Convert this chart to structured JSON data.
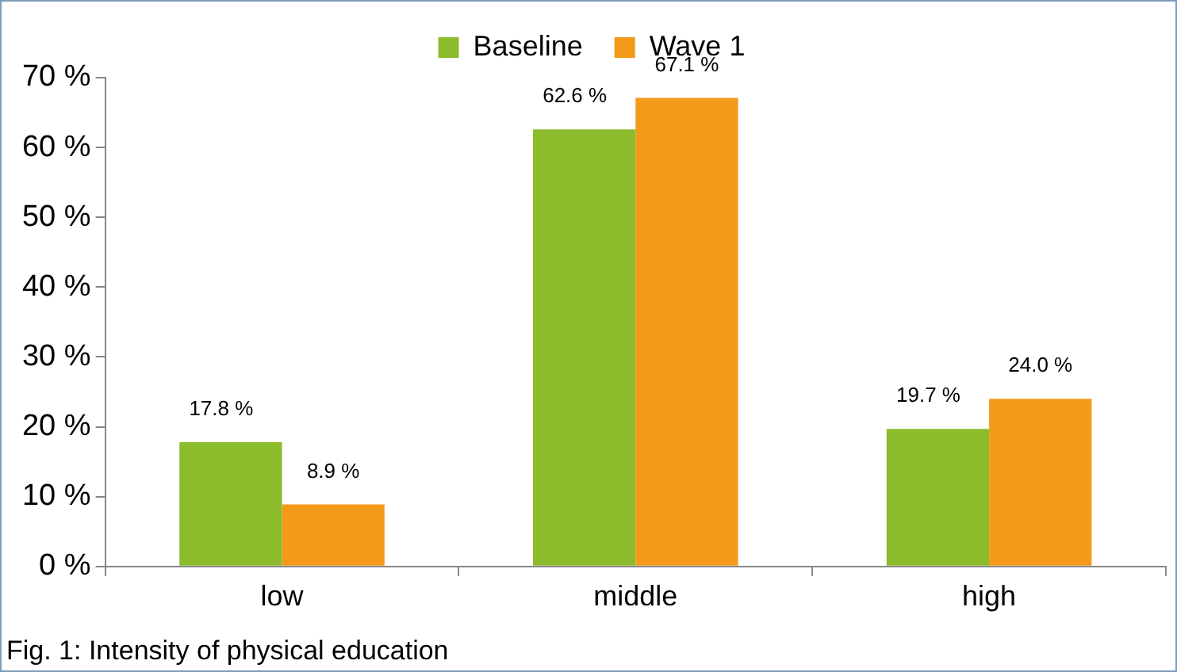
{
  "chart_data": {
    "type": "bar",
    "categories": [
      "low",
      "middle",
      "high"
    ],
    "series": [
      {
        "name": "Baseline",
        "color": "#8cbb2c",
        "values": [
          17.8,
          62.6,
          19.7
        ],
        "value_labels": [
          "17.8 %",
          "62.6 %",
          "19.7 %"
        ]
      },
      {
        "name": "Wave 1",
        "color": "#f39a1a",
        "values": [
          8.9,
          67.1,
          24.0
        ],
        "value_labels": [
          "8.9 %",
          "67.1 %",
          "24.0 %"
        ]
      }
    ],
    "ylim": [
      0,
      70
    ],
    "yticks": [
      {
        "value": 0,
        "label": "0 %"
      },
      {
        "value": 10,
        "label": "10 %"
      },
      {
        "value": 20,
        "label": "20 %"
      },
      {
        "value": 30,
        "label": "30 %"
      },
      {
        "value": 40,
        "label": "40 %"
      },
      {
        "value": 50,
        "label": "50 %"
      },
      {
        "value": 60,
        "label": "60 %"
      },
      {
        "value": 70,
        "label": "70 %"
      }
    ],
    "grid": false,
    "legend": "top",
    "annotations": [
      "Fig. 1: Intensity of physical education"
    ]
  }
}
